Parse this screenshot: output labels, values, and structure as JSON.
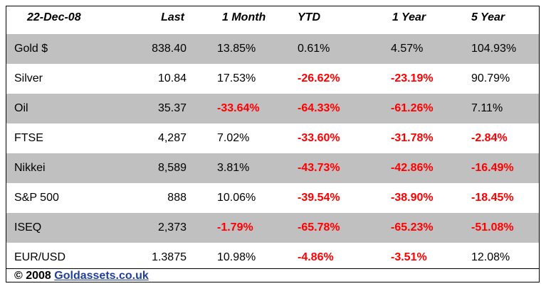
{
  "table": {
    "header": [
      "22-Dec-08",
      "Last",
      "1 Month",
      "YTD",
      "1 Year",
      "5 Year"
    ],
    "rows": [
      [
        "Gold $",
        "838.40",
        "13.85%",
        "0.61%",
        "4.57%",
        "104.93%"
      ],
      [
        "Silver",
        "10.84",
        "17.53%",
        "-26.62%",
        "-23.19%",
        "90.79%"
      ],
      [
        "Oil",
        "35.37",
        "-33.64%",
        "-64.33%",
        "-61.26%",
        "7.11%"
      ],
      [
        "FTSE",
        "4,287",
        "7.02%",
        "-33.60%",
        "-31.78%",
        "-2.84%"
      ],
      [
        "Nikkei",
        "8,589",
        "3.81%",
        "-43.73%",
        "-42.86%",
        "-16.49%"
      ],
      [
        "S&P 500",
        "888",
        "10.06%",
        "-39.54%",
        "-38.90%",
        "-18.45%"
      ],
      [
        "ISEQ",
        "2,373",
        "-1.79%",
        "-65.78%",
        "-65.23%",
        "-51.08%"
      ],
      [
        "EUR/USD",
        "1.3875",
        "10.98%",
        "-4.86%",
        "-3.51%",
        "12.08%"
      ]
    ]
  },
  "footer": {
    "copyright": "© 2008",
    "link": "Goldassets.co.uk"
  }
}
